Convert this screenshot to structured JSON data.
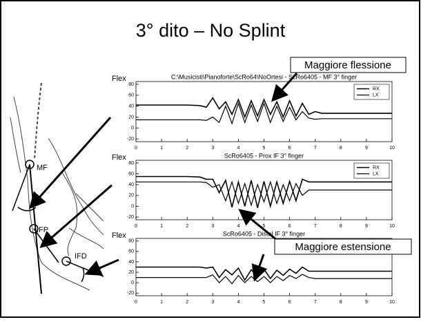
{
  "slide": {
    "title": "3° dito – No Splint",
    "callouts": [
      "Maggiore flessione",
      "Maggiore estensione"
    ],
    "sketch_labels": [
      "MF",
      "IFP",
      "IFD"
    ]
  },
  "chart_data": [
    {
      "type": "line",
      "title": "C:\\Musicisti\\Pianoforte\\ScRo64\\NoOrtesi - ScRo6405 - MF 3° finger",
      "y_label": "Flex",
      "x": [
        0,
        1,
        2,
        2.5,
        2.75,
        3,
        3.25,
        3.5,
        3.75,
        4,
        4.25,
        4.5,
        4.75,
        5,
        5.25,
        5.5,
        5.75,
        6,
        6.25,
        6.5,
        6.75,
        7,
        7.25,
        7.5,
        8,
        9,
        10
      ],
      "series": [
        {
          "name": "RX",
          "color": "#000000",
          "values": [
            42,
            42,
            42,
            41,
            38,
            55,
            35,
            48,
            25,
            52,
            20,
            50,
            22,
            52,
            25,
            48,
            20,
            50,
            22,
            45,
            25,
            30,
            27,
            27,
            27,
            27,
            27
          ]
        },
        {
          "name": "LX",
          "color": "#000000",
          "values": [
            15,
            15,
            15,
            15,
            14,
            20,
            10,
            40,
            8,
            45,
            10,
            42,
            12,
            45,
            10,
            40,
            12,
            38,
            15,
            30,
            18,
            16,
            17,
            17,
            17,
            17,
            17
          ]
        }
      ],
      "xlim": [
        0,
        10
      ],
      "xticks": [
        0,
        1,
        2,
        3,
        4,
        5,
        6,
        7,
        8,
        9,
        10
      ],
      "ylim": [
        -25,
        85
      ],
      "yticks": [
        80,
        60,
        40,
        20,
        0,
        -20
      ],
      "legend": "upper right"
    },
    {
      "type": "line",
      "title": "ScRo6405 - Prox IF 3° finger",
      "y_label": "Flex",
      "x": [
        0,
        1,
        2,
        2.5,
        2.75,
        3,
        3.25,
        3.5,
        3.75,
        4,
        4.25,
        4.5,
        4.75,
        5,
        5.25,
        5.5,
        5.75,
        6,
        6.25,
        6.5,
        6.75,
        7,
        7.25,
        7.5,
        8,
        9,
        10
      ],
      "series": [
        {
          "name": "RX",
          "color": "#000000",
          "values": [
            55,
            55,
            55,
            54,
            50,
            50,
            25,
            48,
            -2,
            45,
            0,
            48,
            -3,
            46,
            0,
            45,
            5,
            46,
            10,
            50,
            45,
            45,
            45,
            45,
            45,
            45,
            45
          ]
        },
        {
          "name": "LX",
          "color": "#000000",
          "values": [
            45,
            45,
            45,
            45,
            44,
            35,
            40,
            10,
            45,
            5,
            42,
            2,
            40,
            8,
            45,
            5,
            40,
            10,
            42,
            20,
            30,
            30,
            30,
            30,
            30,
            30,
            30
          ]
        }
      ],
      "xlim": [
        0,
        10
      ],
      "xticks": [
        0,
        1,
        2,
        3,
        4,
        5,
        6,
        7,
        8,
        9,
        10
      ],
      "ylim": [
        -25,
        85
      ],
      "yticks": [
        80,
        60,
        40,
        20,
        0,
        -20
      ],
      "legend": "upper right"
    },
    {
      "type": "line",
      "title": "ScRo6405 - Distal IF 3° finger",
      "y_label": "Flex",
      "x": [
        0,
        1,
        2,
        2.5,
        2.75,
        3,
        3.25,
        3.5,
        3.75,
        4,
        4.25,
        4.5,
        4.75,
        5,
        5.25,
        5.5,
        5.75,
        6,
        6.25,
        6.5,
        6.75,
        7,
        7.25,
        7.5,
        8,
        9,
        10
      ],
      "series": [
        {
          "name": "RX",
          "color": "#000000",
          "values": [
            30,
            30,
            30,
            30,
            28,
            30,
            10,
            25,
            15,
            28,
            5,
            25,
            12,
            26,
            8,
            24,
            14,
            26,
            18,
            30,
            22,
            22,
            22,
            22,
            22,
            22,
            22
          ]
        },
        {
          "name": "LX",
          "color": "#000000",
          "values": [
            10,
            10,
            10,
            10,
            10,
            15,
            0,
            12,
            -2,
            14,
            0,
            12,
            2,
            12,
            0,
            12,
            4,
            14,
            8,
            16,
            10,
            8,
            8,
            8,
            8,
            8,
            8
          ]
        }
      ],
      "xlim": [
        0,
        10
      ],
      "xticks": [
        0,
        1,
        2,
        3,
        4,
        5,
        6,
        7,
        8,
        9,
        10
      ],
      "ylim": [
        -25,
        85
      ],
      "yticks": [
        80,
        60,
        40,
        20,
        0,
        -20
      ]
    }
  ]
}
